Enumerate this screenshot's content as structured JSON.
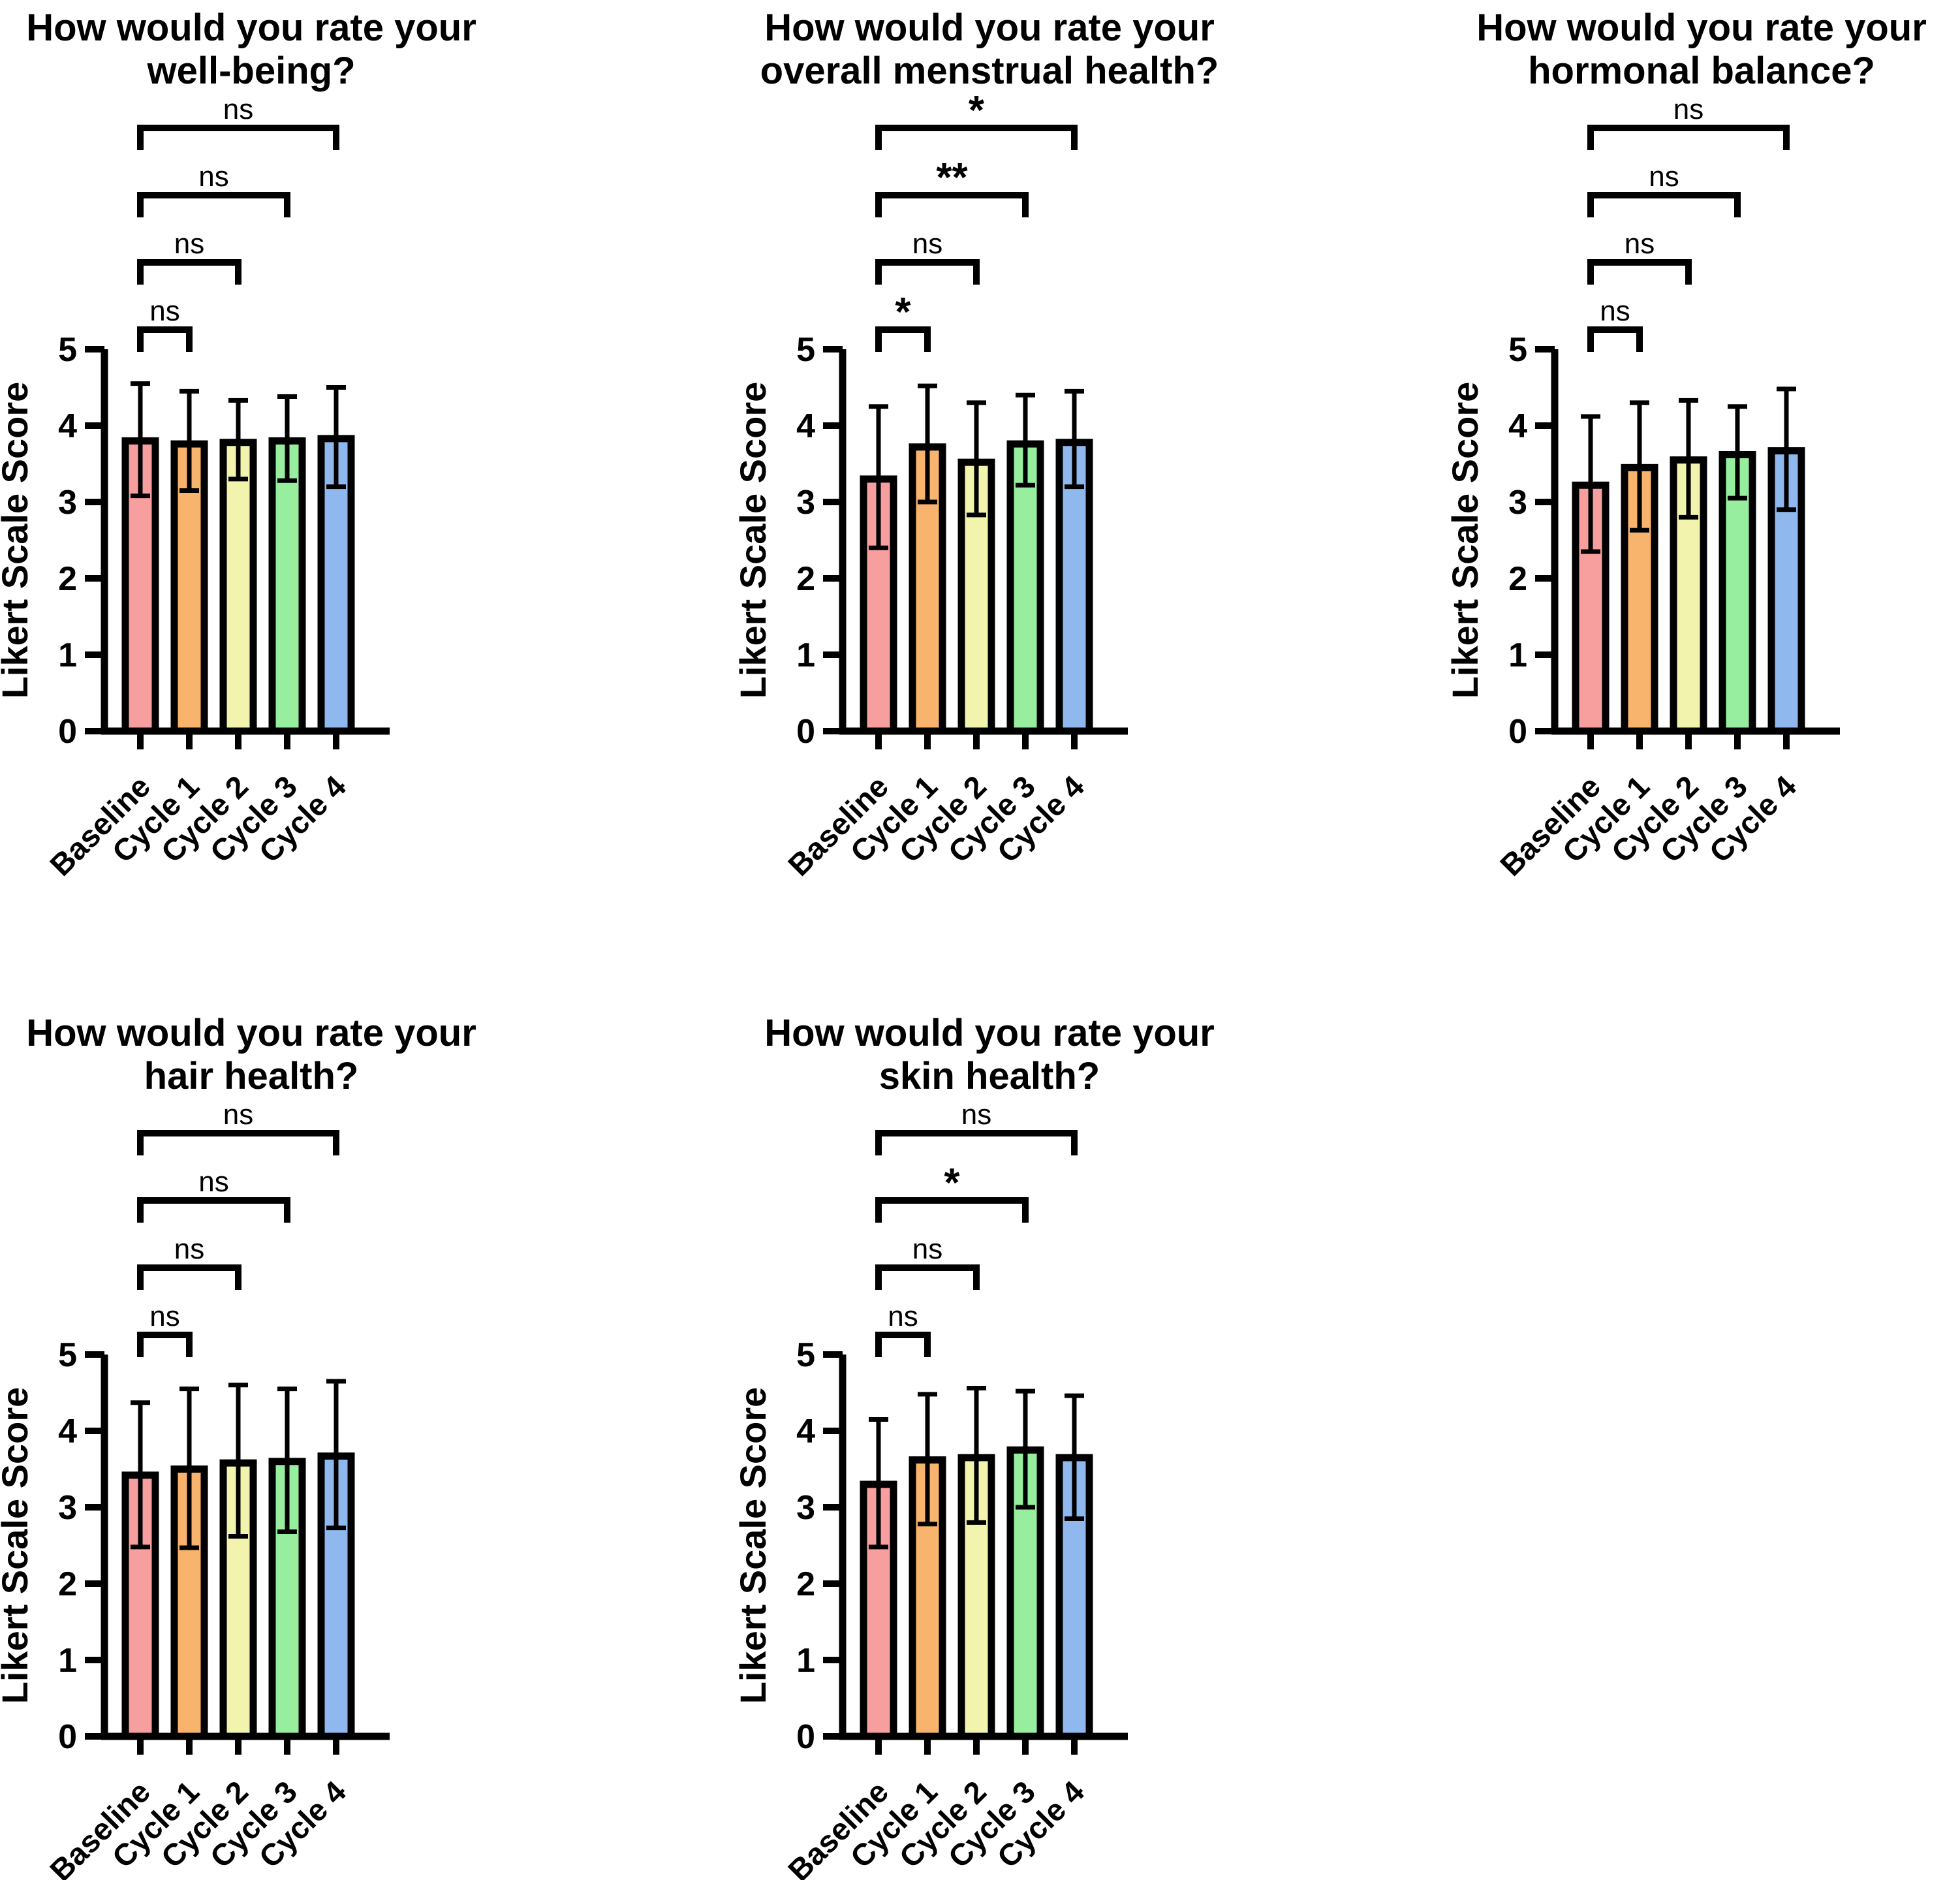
{
  "figure": {
    "background": "#FFFFFF",
    "text_color": "#000000",
    "bar_border_color": "#000000",
    "bar_palette": [
      "#F79E9E",
      "#F8B36C",
      "#F2F4AE",
      "#98EE9F",
      "#8FB9EE"
    ],
    "grid": {
      "rows": 2,
      "columns": 3
    },
    "panel_count": 5
  },
  "chart_data": [
    {
      "type": "bar",
      "title": "How would you rate your well-being?",
      "title_lines": [
        "How would you rate your",
        "well-being?"
      ],
      "xlabel": "",
      "ylabel": "Likert Scale Score",
      "ylim": [
        0,
        5
      ],
      "yticks": [
        0,
        1,
        2,
        3,
        4,
        5
      ],
      "grid": false,
      "legend": "none",
      "categories": [
        "Baseline",
        "Cycle 1",
        "Cycle 2",
        "Cycle 3",
        "Cycle 4"
      ],
      "values": [
        3.8,
        3.76,
        3.78,
        3.8,
        3.83
      ],
      "error_low": [
        3.08,
        3.15,
        3.3,
        3.28,
        3.2
      ],
      "error_high": [
        4.55,
        4.45,
        4.33,
        4.38,
        4.5
      ],
      "error_type": "whisker-caps-both-ends",
      "significance": [
        {
          "from": "Baseline",
          "to": "Cycle 1",
          "label": "ns"
        },
        {
          "from": "Baseline",
          "to": "Cycle 2",
          "label": "ns"
        },
        {
          "from": "Baseline",
          "to": "Cycle 3",
          "label": "ns"
        },
        {
          "from": "Baseline",
          "to": "Cycle 4",
          "label": "ns"
        }
      ],
      "layout": {
        "row": 0,
        "col": 0,
        "plot_left": 160
      }
    },
    {
      "type": "bar",
      "title": "How would you rate your overall menstrual health?",
      "title_lines": [
        "How would you rate your",
        "overall menstrual health?"
      ],
      "xlabel": "",
      "ylabel": "Likert Scale Score",
      "ylim": [
        0,
        5
      ],
      "yticks": [
        0,
        1,
        2,
        3,
        4,
        5
      ],
      "grid": false,
      "legend": "none",
      "categories": [
        "Baseline",
        "Cycle 1",
        "Cycle 2",
        "Cycle 3",
        "Cycle 4"
      ],
      "values": [
        3.3,
        3.72,
        3.52,
        3.76,
        3.78
      ],
      "error_low": [
        2.4,
        3.0,
        2.83,
        3.22,
        3.2
      ],
      "error_high": [
        4.25,
        4.52,
        4.3,
        4.4,
        4.45
      ],
      "error_type": "whisker-caps-both-ends",
      "significance": [
        {
          "from": "Baseline",
          "to": "Cycle 1",
          "label": "*"
        },
        {
          "from": "Baseline",
          "to": "Cycle 2",
          "label": "ns"
        },
        {
          "from": "Baseline",
          "to": "Cycle 3",
          "label": "**"
        },
        {
          "from": "Baseline",
          "to": "Cycle 4",
          "label": "*"
        }
      ],
      "layout": {
        "row": 0,
        "col": 1,
        "plot_left": 290
      }
    },
    {
      "type": "bar",
      "title": "How would you rate your hormonal balance?",
      "title_lines": [
        "How would you rate your",
        "hormonal balance?"
      ],
      "xlabel": "",
      "ylabel": "Likert Scale Score",
      "ylim": [
        0,
        5
      ],
      "yticks": [
        0,
        1,
        2,
        3,
        4,
        5
      ],
      "grid": false,
      "legend": "none",
      "categories": [
        "Baseline",
        "Cycle 1",
        "Cycle 2",
        "Cycle 3",
        "Cycle 4"
      ],
      "values": [
        3.22,
        3.45,
        3.55,
        3.62,
        3.67
      ],
      "error_low": [
        2.35,
        2.63,
        2.8,
        3.05,
        2.9
      ],
      "error_high": [
        4.12,
        4.3,
        4.33,
        4.25,
        4.48
      ],
      "error_type": "whisker-caps-both-ends",
      "significance": [
        {
          "from": "Baseline",
          "to": "Cycle 1",
          "label": "ns"
        },
        {
          "from": "Baseline",
          "to": "Cycle 2",
          "label": "ns"
        },
        {
          "from": "Baseline",
          "to": "Cycle 3",
          "label": "ns"
        },
        {
          "from": "Baseline",
          "to": "Cycle 4",
          "label": "ns"
        }
      ],
      "layout": {
        "row": 0,
        "col": 2,
        "plot_left": 380
      }
    },
    {
      "type": "bar",
      "title": "How would you rate your hair health?",
      "title_lines": [
        "How would you rate your",
        "hair health?"
      ],
      "xlabel": "",
      "ylabel": "Likert Scale Score",
      "ylim": [
        0,
        5
      ],
      "yticks": [
        0,
        1,
        2,
        3,
        4,
        5
      ],
      "grid": false,
      "legend": "none",
      "categories": [
        "Baseline",
        "Cycle 1",
        "Cycle 2",
        "Cycle 3",
        "Cycle 4"
      ],
      "values": [
        3.42,
        3.5,
        3.58,
        3.6,
        3.67
      ],
      "error_low": [
        2.48,
        2.47,
        2.62,
        2.68,
        2.73
      ],
      "error_high": [
        4.37,
        4.55,
        4.6,
        4.55,
        4.65
      ],
      "error_type": "whisker-caps-both-ends",
      "significance": [
        {
          "from": "Baseline",
          "to": "Cycle 1",
          "label": "ns"
        },
        {
          "from": "Baseline",
          "to": "Cycle 2",
          "label": "ns"
        },
        {
          "from": "Baseline",
          "to": "Cycle 3",
          "label": "ns"
        },
        {
          "from": "Baseline",
          "to": "Cycle 4",
          "label": "ns"
        }
      ],
      "layout": {
        "row": 1,
        "col": 0,
        "plot_left": 160
      }
    },
    {
      "type": "bar",
      "title": "How would you rate your skin health?",
      "title_lines": [
        "How would you rate your",
        "skin health?"
      ],
      "xlabel": "",
      "ylabel": "Likert Scale Score",
      "ylim": [
        0,
        5
      ],
      "yticks": [
        0,
        1,
        2,
        3,
        4,
        5
      ],
      "grid": false,
      "legend": "none",
      "categories": [
        "Baseline",
        "Cycle 1",
        "Cycle 2",
        "Cycle 3",
        "Cycle 4"
      ],
      "values": [
        3.3,
        3.62,
        3.65,
        3.75,
        3.65
      ],
      "error_low": [
        2.48,
        2.78,
        2.8,
        3.0,
        2.85
      ],
      "error_high": [
        4.15,
        4.48,
        4.56,
        4.52,
        4.46
      ],
      "error_type": "whisker-caps-both-ends",
      "significance": [
        {
          "from": "Baseline",
          "to": "Cycle 1",
          "label": "ns"
        },
        {
          "from": "Baseline",
          "to": "Cycle 2",
          "label": "ns"
        },
        {
          "from": "Baseline",
          "to": "Cycle 3",
          "label": "*"
        },
        {
          "from": "Baseline",
          "to": "Cycle 4",
          "label": "ns"
        }
      ],
      "layout": {
        "row": 1,
        "col": 1,
        "plot_left": 290
      }
    }
  ]
}
